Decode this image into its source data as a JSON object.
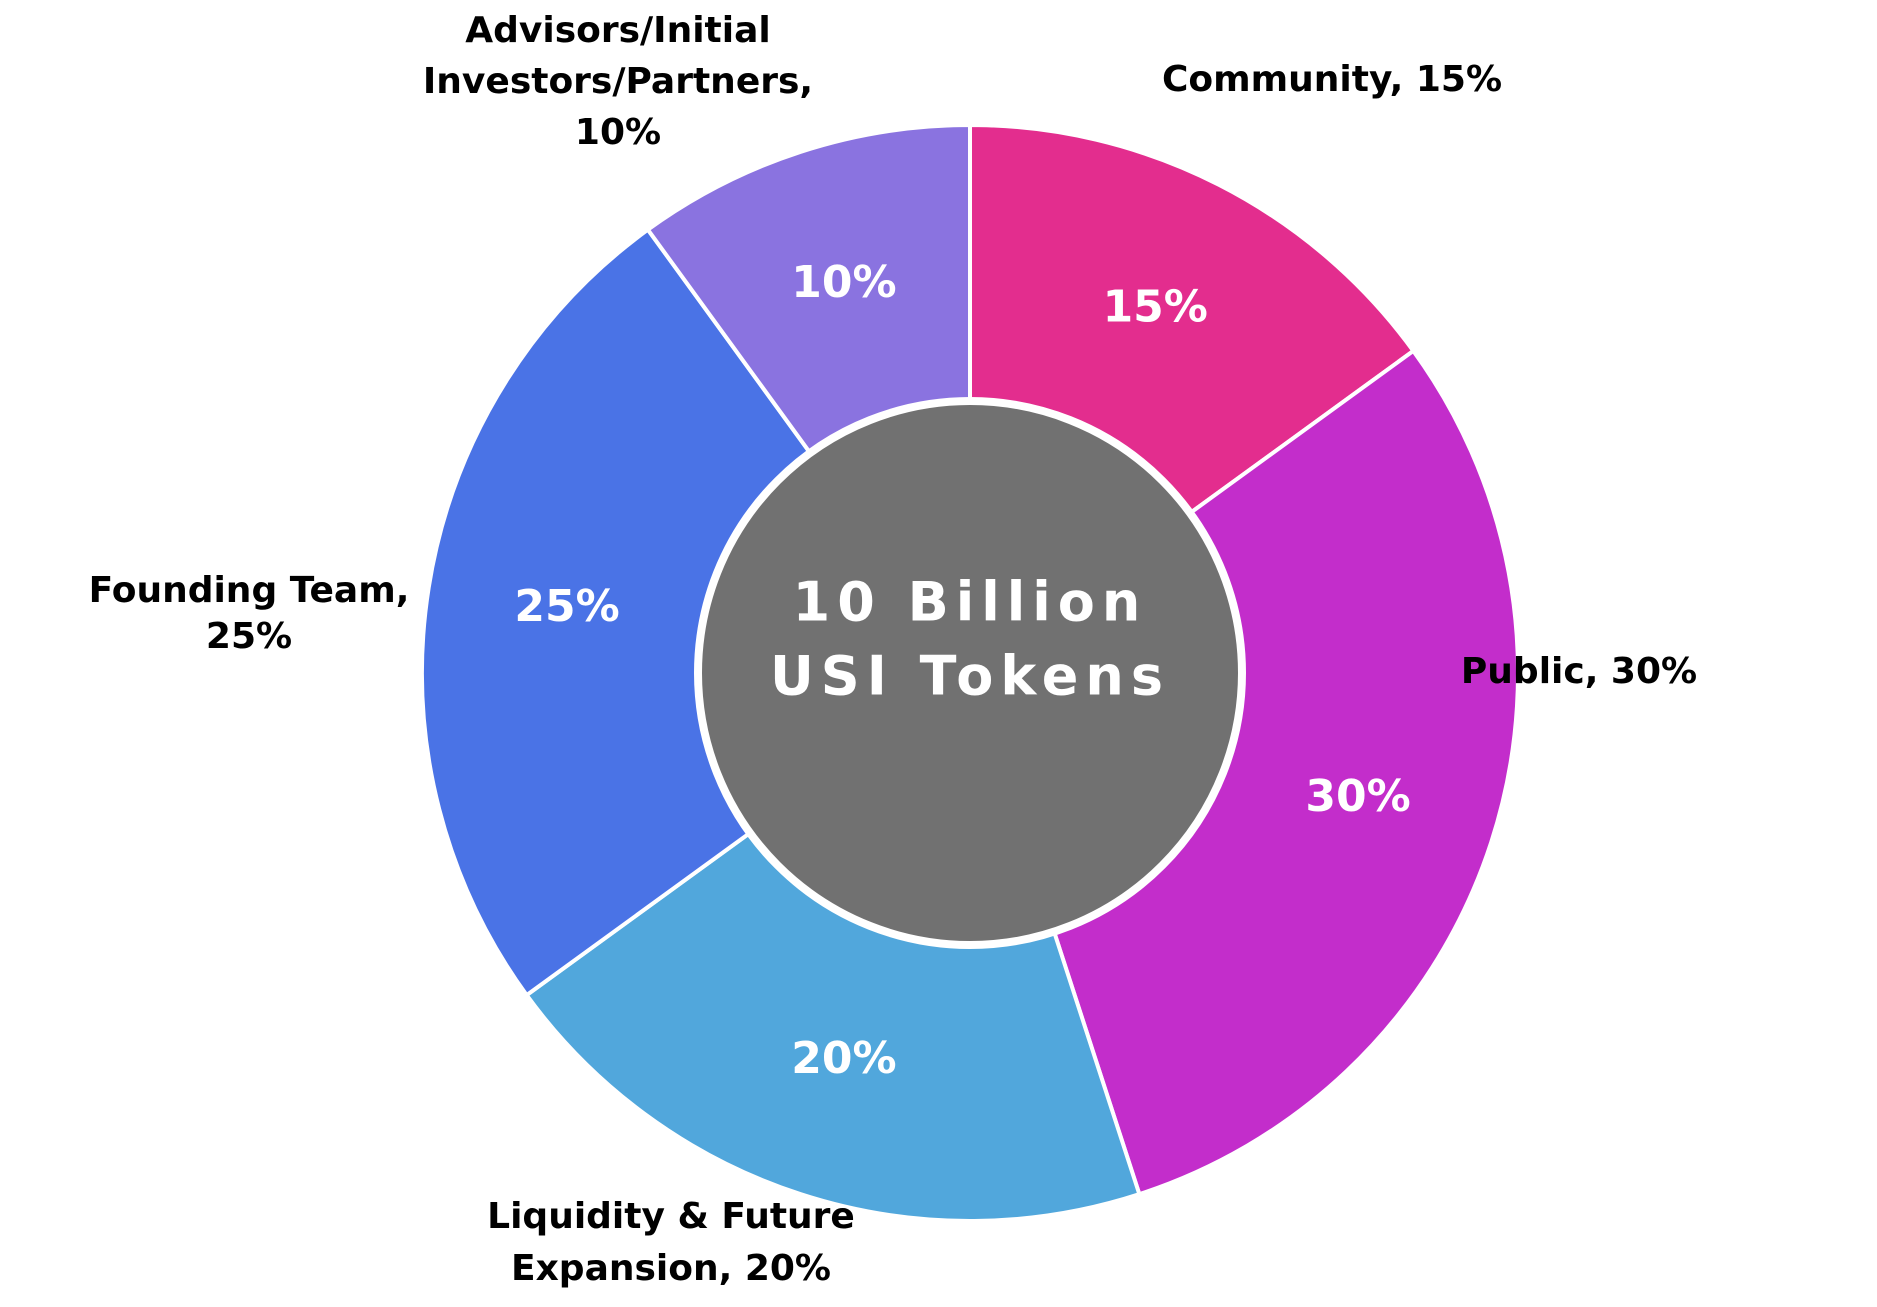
{
  "chart_data": {
    "type": "pie",
    "donut": true,
    "center_label": [
      "10 Billion",
      "USI Tokens"
    ],
    "slices": [
      {
        "name": "Community",
        "value": 15,
        "value_label": "15%",
        "outer_label": [
          "Community, 15%"
        ],
        "color": "#e32d8e"
      },
      {
        "name": "Public",
        "value": 30,
        "value_label": "30%",
        "outer_label": [
          "Public, 30%"
        ],
        "color": "#c32dcb"
      },
      {
        "name": "Liquidity & Future Expansion",
        "value": 20,
        "value_label": "20%",
        "outer_label": [
          "Liquidity & Future",
          "Expansion, 20%"
        ],
        "color": "#51a7dc"
      },
      {
        "name": "Founding Team",
        "value": 25,
        "value_label": "25%",
        "outer_label": [
          "Founding Team,",
          "25%"
        ],
        "color": "#4a73e6"
      },
      {
        "name": "Advisors/Initial Investors/Partners",
        "value": 10,
        "value_label": "10%",
        "outer_label": [
          "Advisors/Initial",
          "Investors/Partners,",
          "10%"
        ],
        "color": "#8a73e0"
      }
    ],
    "legend": "none",
    "grid": false
  }
}
